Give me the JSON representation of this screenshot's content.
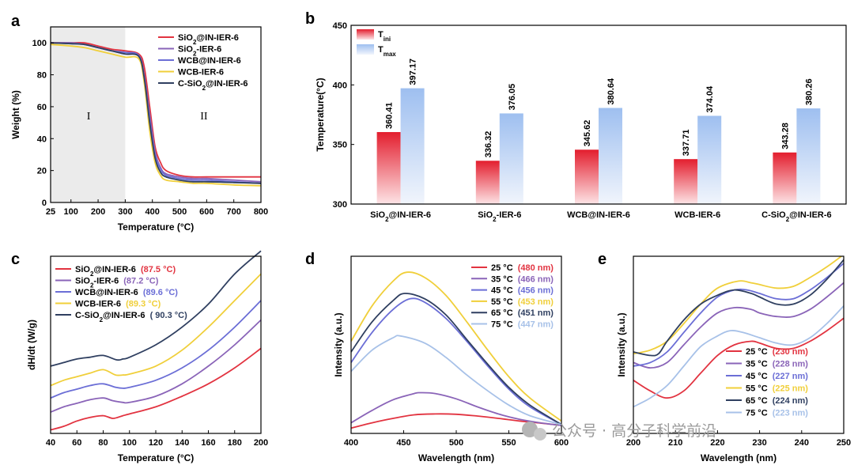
{
  "colors": {
    "red": "#e23340",
    "purple": "#8a64b8",
    "blue": "#6b6ed6",
    "yellow": "#f0cf3a",
    "navy": "#2f3f60",
    "lightblue": "#a7c1e8"
  },
  "watermark": "公众号 · 高分子科学前沿",
  "chart_data": [
    {
      "panel": "a",
      "type": "line",
      "xlabel": "Temperature (°C)",
      "ylabel": "Weight (%)",
      "xlim": [
        25,
        800
      ],
      "ylim": [
        0,
        110
      ],
      "xticks": [
        25,
        100,
        200,
        300,
        400,
        500,
        600,
        700,
        800
      ],
      "yticks": [
        0,
        20,
        40,
        60,
        80,
        100
      ],
      "region_labels": [
        "I",
        "II"
      ],
      "shaded_region": [
        25,
        300
      ],
      "series": [
        {
          "name": "SiO₂@IN-IER-6",
          "color": "red",
          "x": [
            25,
            100,
            150,
            200,
            250,
            300,
            350,
            370,
            390,
            410,
            430,
            450,
            500,
            550,
            600,
            700,
            800
          ],
          "y": [
            100,
            100,
            100,
            98,
            96,
            95,
            93,
            85,
            60,
            35,
            25,
            20,
            17,
            16,
            16,
            16,
            16
          ]
        },
        {
          "name": "SiO₂-IER-6",
          "color": "purple",
          "x": [
            25,
            100,
            150,
            200,
            250,
            300,
            350,
            370,
            390,
            410,
            430,
            450,
            500,
            550,
            600,
            700,
            800
          ],
          "y": [
            100,
            100,
            99,
            97,
            95,
            93,
            92,
            80,
            55,
            32,
            22,
            18,
            16,
            15,
            15,
            14,
            13
          ]
        },
        {
          "name": "WCB@IN-IER-6",
          "color": "blue",
          "x": [
            25,
            100,
            150,
            200,
            250,
            300,
            350,
            370,
            390,
            410,
            430,
            450,
            500,
            550,
            600,
            700,
            800
          ],
          "y": [
            100,
            99.5,
            99,
            97,
            95,
            94,
            92,
            78,
            52,
            30,
            21,
            17,
            15,
            14,
            14,
            13,
            12
          ]
        },
        {
          "name": "WCB-IER-6",
          "color": "yellow",
          "x": [
            25,
            100,
            150,
            200,
            250,
            300,
            350,
            370,
            390,
            410,
            430,
            450,
            500,
            550,
            600,
            700,
            800
          ],
          "y": [
            99,
            98,
            97,
            95,
            93,
            91,
            90,
            75,
            45,
            25,
            17,
            14,
            13,
            12,
            12,
            11,
            10.5
          ]
        },
        {
          "name": "C-SiO₂@IN-IER-6",
          "color": "navy",
          "x": [
            25,
            100,
            150,
            200,
            250,
            300,
            350,
            370,
            390,
            410,
            430,
            450,
            500,
            550,
            600,
            700,
            800
          ],
          "y": [
            100,
            99.5,
            99,
            97,
            95,
            93,
            91.5,
            78,
            50,
            28,
            19,
            16,
            14,
            13,
            13,
            12.5,
            12
          ]
        }
      ]
    },
    {
      "panel": "b",
      "type": "bar",
      "ylabel": "Temperature(°C)",
      "ylim": [
        300,
        450
      ],
      "yticks": [
        300,
        350,
        400,
        450
      ],
      "categories": [
        "SiO₂@IN-IER-6",
        "SiO₂-IER-6",
        "WCB@IN-IER-6",
        "WCB-IER-6",
        "C-SiO₂@IN-IER-6"
      ],
      "series": [
        {
          "name": "Tini",
          "color": "red",
          "values": [
            360.41,
            336.32,
            345.62,
            337.71,
            343.28
          ],
          "labels": [
            "360.41",
            "336.32",
            "345.62",
            "337.71",
            "343.28"
          ]
        },
        {
          "name": "Tmax",
          "color": "lightblue",
          "values": [
            397.17,
            376.05,
            380.64,
            374.04,
            380.26
          ],
          "labels": [
            "397.17",
            "376.05",
            "380.64",
            "374.04",
            "380.26"
          ]
        }
      ]
    },
    {
      "panel": "c",
      "type": "line",
      "xlabel": "Temperature (°C)",
      "ylabel": "dH/dt (W/g)",
      "xlim": [
        40,
        200
      ],
      "ylim": [
        0,
        100
      ],
      "xticks": [
        40,
        60,
        80,
        100,
        120,
        140,
        160,
        180,
        200
      ],
      "series": [
        {
          "name": "SiO₂@IN-IER-6",
          "note": "(87.5 °C)",
          "color": "red",
          "x": [
            40,
            50,
            60,
            70,
            80,
            87.5,
            95,
            100,
            120,
            140,
            160,
            180,
            200
          ],
          "y": [
            2,
            4,
            7,
            9,
            10,
            8.5,
            10,
            11,
            15,
            21,
            28,
            37,
            48
          ]
        },
        {
          "name": "SiO₂-IER-6",
          "note": "(87.2 °C)",
          "color": "purple",
          "x": [
            40,
            50,
            60,
            70,
            80,
            87.2,
            95,
            100,
            120,
            140,
            160,
            180,
            200
          ],
          "y": [
            12,
            15,
            17,
            19,
            20,
            18.5,
            17.5,
            17.5,
            21,
            28,
            38,
            50,
            64
          ]
        },
        {
          "name": "WCB@IN-IER-6",
          "note": "(89.6 °C)",
          "color": "blue",
          "x": [
            40,
            50,
            60,
            70,
            80,
            89.6,
            95,
            100,
            120,
            140,
            160,
            180,
            200
          ],
          "y": [
            20,
            23,
            25,
            27,
            28,
            26,
            25.5,
            26,
            30,
            37,
            47,
            60,
            75
          ]
        },
        {
          "name": "WCB-IER-6",
          "note": "(89.3 °C)",
          "color": "yellow",
          "x": [
            40,
            50,
            60,
            70,
            80,
            89.3,
            95,
            100,
            120,
            140,
            160,
            180,
            200
          ],
          "y": [
            27,
            30,
            32,
            34,
            36,
            33,
            33,
            33.5,
            38,
            47,
            60,
            75,
            90
          ]
        },
        {
          "name": "C-SiO₂@IN-IER-6",
          "note": "( 90.3 °C)",
          "color": "navy",
          "x": [
            40,
            50,
            60,
            70,
            80,
            90.3,
            95,
            100,
            120,
            140,
            160,
            180,
            200
          ],
          "y": [
            38,
            40,
            42,
            43,
            44,
            41.5,
            42,
            43,
            50,
            60,
            73,
            90,
            103
          ]
        }
      ]
    },
    {
      "panel": "d",
      "type": "line",
      "xlabel": "Wavelength (nm)",
      "ylabel": "Intensity (a.u.)",
      "xlim": [
        400,
        600
      ],
      "ylim": [
        0,
        100
      ],
      "xticks": [
        400,
        450,
        500,
        550,
        600
      ],
      "series": [
        {
          "name": "25 °C",
          "note": "(480 nm)",
          "color": "red",
          "x": [
            400,
            420,
            440,
            460,
            480,
            500,
            520,
            540,
            560,
            580,
            600
          ],
          "y": [
            3,
            6,
            8.5,
            10.5,
            11,
            10.8,
            9.8,
            8.5,
            7,
            5.8,
            4.5
          ]
        },
        {
          "name": "35 °C",
          "note": "(466 nm)",
          "color": "purple",
          "x": [
            400,
            420,
            440,
            460,
            466,
            480,
            500,
            520,
            540,
            560,
            580,
            600
          ],
          "y": [
            6,
            13,
            19,
            22.5,
            23,
            22.5,
            19.5,
            15,
            11,
            8,
            6,
            4.5
          ]
        },
        {
          "name": "45 °C",
          "note": "(456 nm)",
          "color": "blue",
          "x": [
            400,
            420,
            440,
            456,
            470,
            490,
            510,
            530,
            550,
            570,
            600
          ],
          "y": [
            40,
            57,
            70,
            76,
            74,
            65,
            52,
            38,
            25,
            15,
            5
          ]
        },
        {
          "name": "55 °C",
          "note": "(453 nm)",
          "color": "yellow",
          "x": [
            400,
            420,
            440,
            453,
            470,
            490,
            510,
            530,
            550,
            570,
            600
          ],
          "y": [
            52,
            72,
            86,
            91,
            88,
            78,
            63,
            47,
            32,
            20,
            7
          ]
        },
        {
          "name": "65 °C",
          "note": "(451 nm)",
          "color": "navy",
          "x": [
            400,
            420,
            440,
            451,
            470,
            490,
            510,
            530,
            550,
            570,
            600
          ],
          "y": [
            46,
            63,
            75,
            79,
            76,
            67,
            53,
            39,
            26,
            16,
            5
          ]
        },
        {
          "name": "75 °C",
          "note": "(447 nm)",
          "color": "lightblue",
          "x": [
            400,
            420,
            440,
            447,
            470,
            490,
            510,
            530,
            550,
            570,
            600
          ],
          "y": [
            35,
            47,
            54,
            55,
            51,
            43,
            33,
            24,
            16,
            10,
            5
          ]
        }
      ]
    },
    {
      "panel": "e",
      "type": "line",
      "xlabel": "Wavelength (nm)",
      "ylabel": "Intensity (a.u.)",
      "xlim": [
        200,
        250
      ],
      "ylim": [
        0,
        100
      ],
      "xticks": [
        200,
        210,
        220,
        230,
        240,
        250
      ],
      "series": [
        {
          "name": "25 °C",
          "note": "(230 nm)",
          "color": "red",
          "x": [
            200,
            204,
            208,
            212,
            216,
            220,
            224,
            228,
            230,
            234,
            238,
            242,
            246,
            250
          ],
          "y": [
            30,
            24,
            20,
            24,
            34,
            44,
            50,
            52,
            51,
            48,
            48,
            52,
            58,
            65
          ]
        },
        {
          "name": "35 °C",
          "note": "(228 nm)",
          "color": "purple",
          "x": [
            200,
            204,
            208,
            212,
            216,
            220,
            224,
            228,
            230,
            234,
            238,
            242,
            246,
            250
          ],
          "y": [
            40,
            37,
            40,
            50,
            60,
            68,
            71,
            70,
            68,
            66,
            66,
            70,
            77,
            85
          ]
        },
        {
          "name": "45 °C",
          "note": "(227 nm)",
          "color": "blue",
          "x": [
            200,
            204,
            208,
            212,
            216,
            220,
            224,
            227,
            230,
            234,
            238,
            242,
            246,
            250
          ],
          "y": [
            38,
            40,
            46,
            57,
            68,
            77,
            81,
            81,
            79,
            76,
            76,
            81,
            88,
            96
          ]
        },
        {
          "name": "55 °C",
          "note": "(225 nm)",
          "color": "yellow",
          "x": [
            200,
            204,
            208,
            212,
            216,
            220,
            225,
            228,
            230,
            234,
            238,
            242,
            246,
            250
          ],
          "y": [
            45,
            47,
            52,
            62,
            73,
            82,
            86,
            85,
            84,
            82,
            83,
            88,
            94,
            101
          ]
        },
        {
          "name": "65 °C",
          "note": "(224 nm)",
          "color": "navy",
          "x": [
            200,
            204,
            206,
            208,
            212,
            216,
            220,
            224,
            228,
            230,
            234,
            238,
            242,
            246,
            250
          ],
          "y": [
            46,
            44,
            45,
            52,
            64,
            73,
            78,
            81,
            79,
            77,
            73,
            73,
            78,
            87,
            98
          ]
        },
        {
          "name": "75 °C",
          "note": "(223 nm)",
          "color": "lightblue",
          "x": [
            200,
            204,
            208,
            212,
            216,
            220,
            223,
            226,
            230,
            234,
            238,
            242,
            246,
            250
          ],
          "y": [
            15,
            20,
            27,
            38,
            49,
            55,
            58,
            57,
            54,
            51,
            50,
            54,
            62,
            72
          ]
        }
      ]
    }
  ]
}
